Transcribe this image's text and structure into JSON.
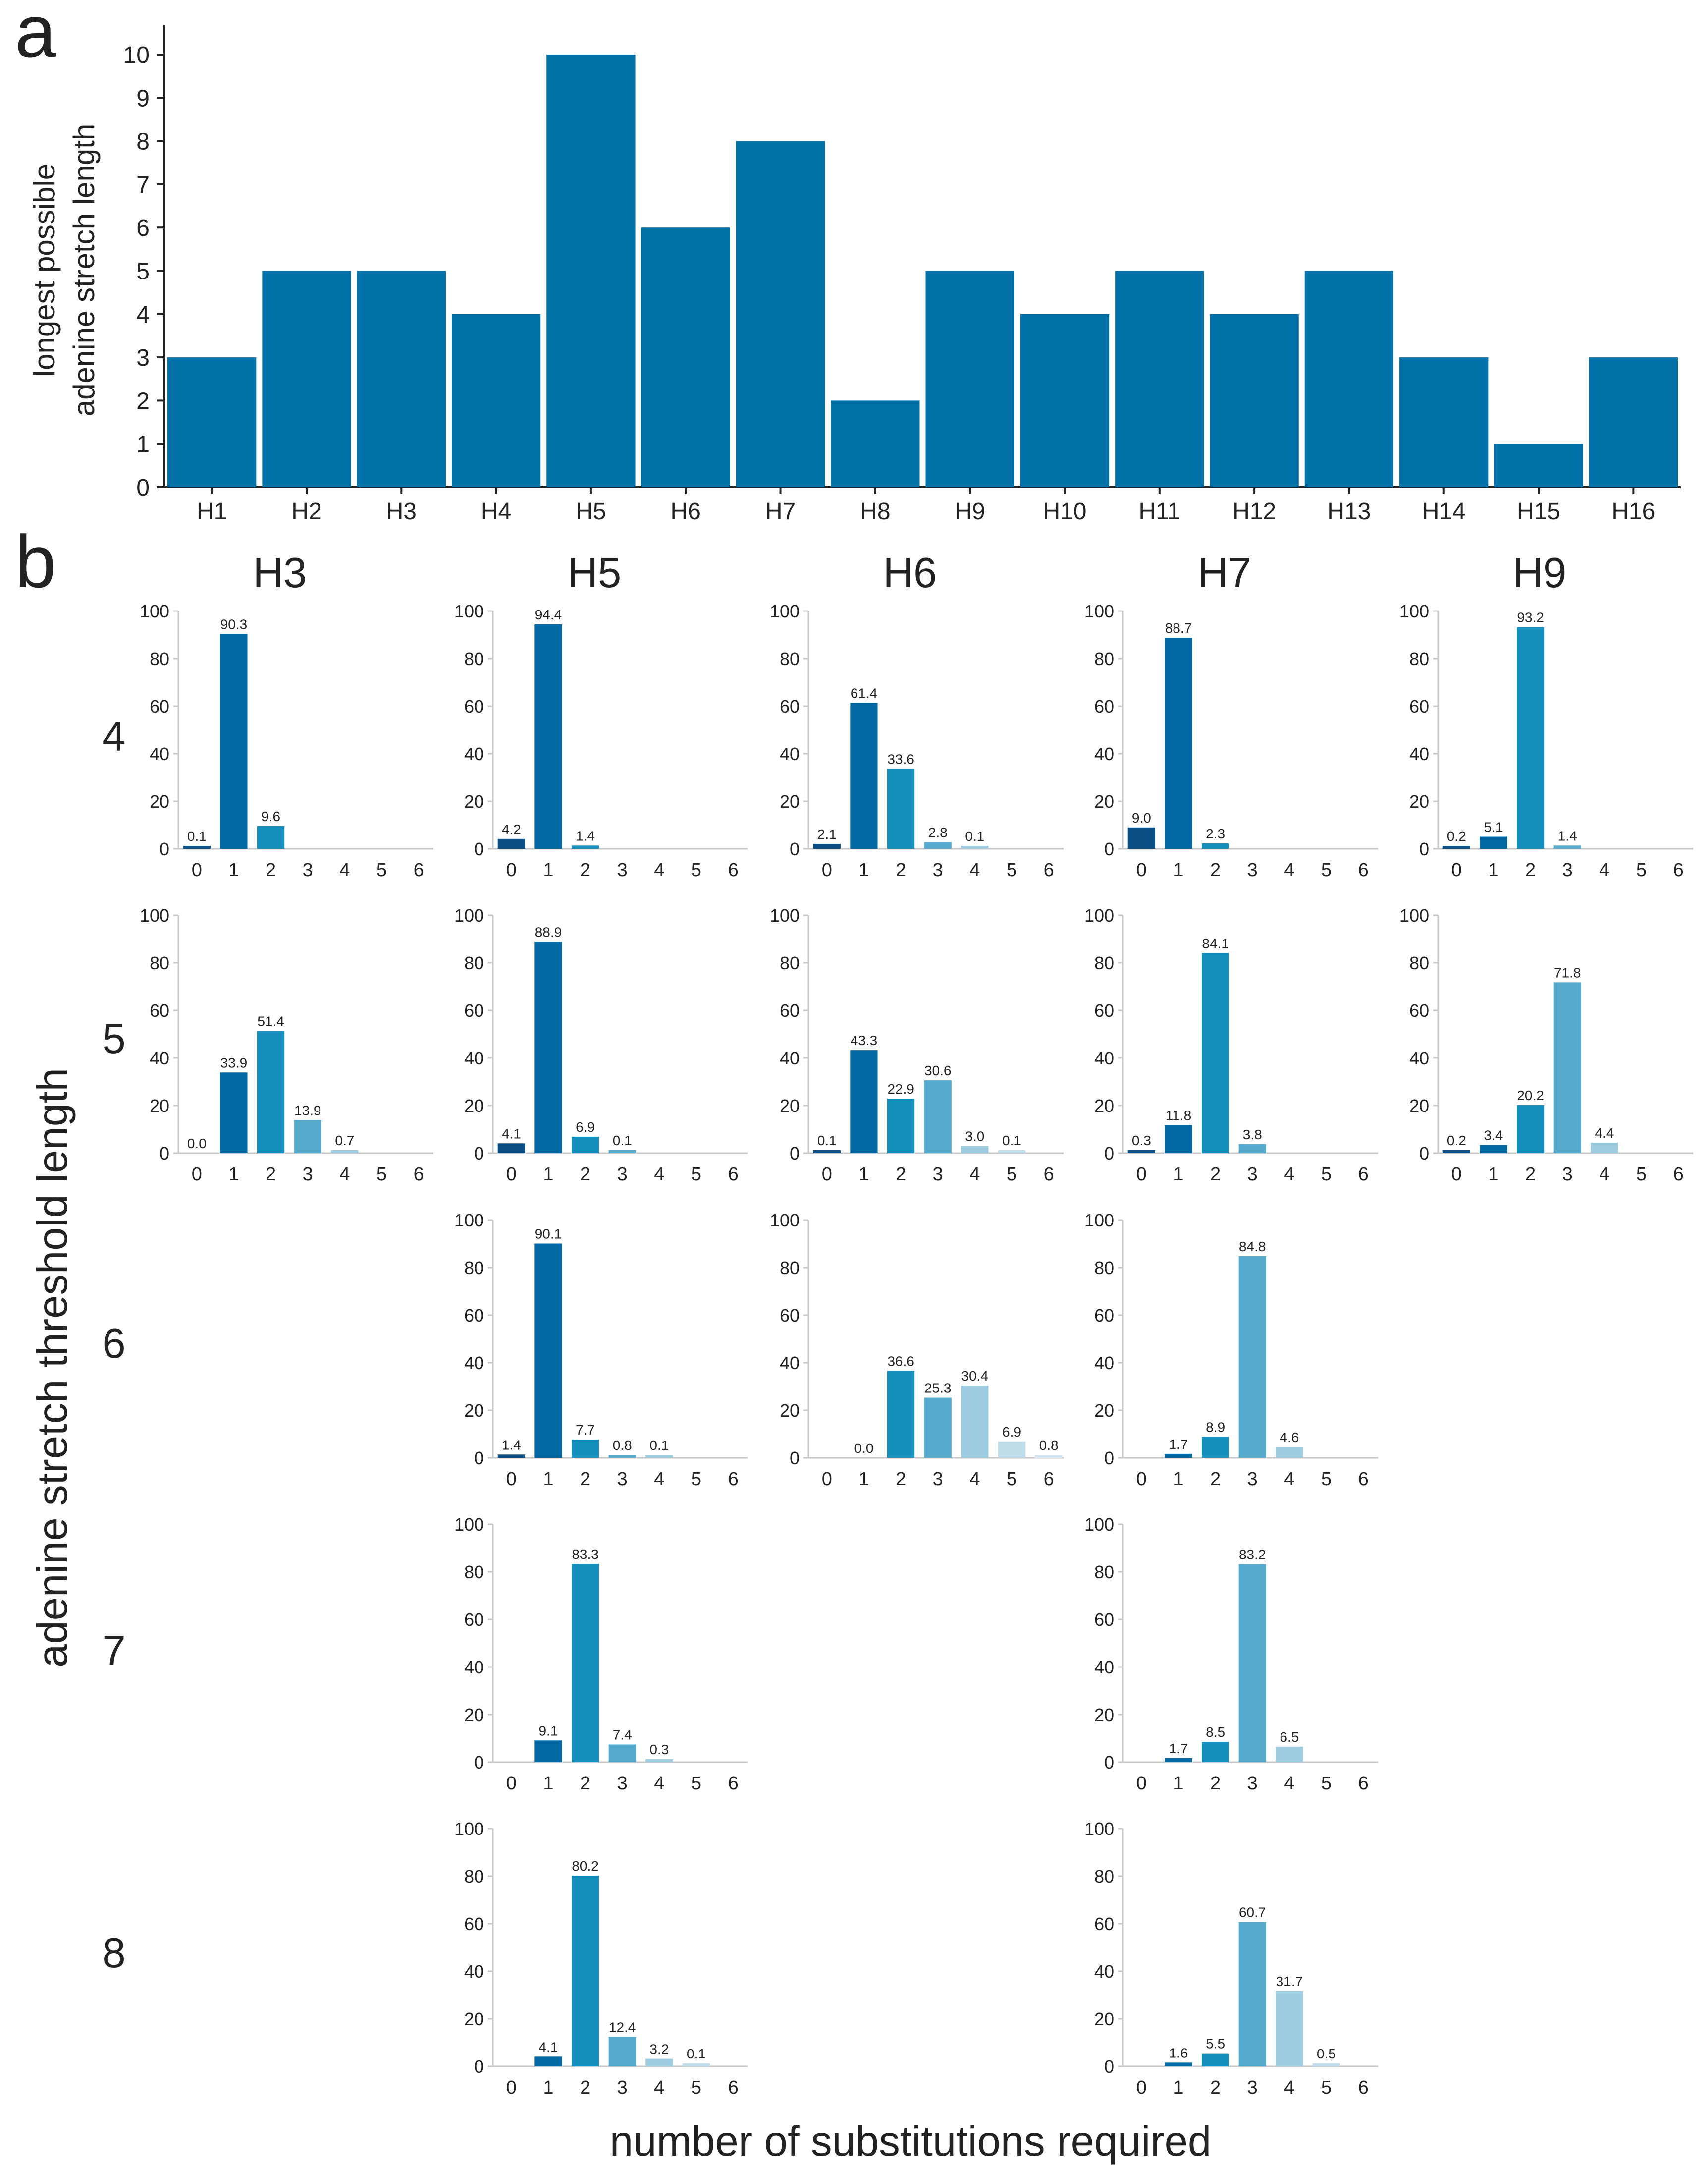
{
  "panel_labels": {
    "a": "a",
    "b": "b"
  },
  "colors": {
    "bar_main": "#0170a7",
    "axis": "#222222",
    "sub_axis": "#c8c8c8",
    "shades": [
      "#0a4f86",
      "#0269a4",
      "#178fbd",
      "#56abcc",
      "#9dcbe0",
      "#bfdcea",
      "#d7e9f2"
    ]
  },
  "chart_data": [
    {
      "type": "bar",
      "id": "panel-a",
      "title": "",
      "xlabel": "",
      "ylabel": [
        "longest possible",
        "adenine stretch length"
      ],
      "categories": [
        "H1",
        "H2",
        "H3",
        "H4",
        "H5",
        "H6",
        "H7",
        "H8",
        "H9",
        "H10",
        "H11",
        "H12",
        "H13",
        "H14",
        "H15",
        "H16"
      ],
      "values": [
        3,
        5,
        5,
        4,
        10,
        6,
        8,
        2,
        5,
        4,
        5,
        4,
        5,
        3,
        1,
        3
      ],
      "ylim": [
        0,
        10
      ],
      "yticks": [
        "0",
        "1",
        "2",
        "3",
        "4",
        "5",
        "6",
        "7",
        "8",
        "9",
        "10"
      ],
      "grid": false
    },
    {
      "type": "bar",
      "id": "panel-b",
      "xlabel": "number of substitutions required",
      "ylabel": "adenine stretch threshold length",
      "ylim": [
        0,
        100
      ],
      "yticks": [
        "0",
        "20",
        "40",
        "60",
        "80",
        "100"
      ],
      "x_categories": [
        "0",
        "1",
        "2",
        "3",
        "4",
        "5",
        "6"
      ],
      "columns": [
        "H3",
        "H5",
        "H6",
        "H7",
        "H9"
      ],
      "rows": [
        "4",
        "5",
        "6",
        "7",
        "8"
      ],
      "subplots": [
        {
          "col": 0,
          "row": 0,
          "values": [
            0.1,
            90.3,
            9.6,
            null,
            null,
            null,
            null
          ],
          "labels": [
            "0.1",
            "90.3",
            "9.6",
            "",
            "",
            "",
            ""
          ]
        },
        {
          "col": 1,
          "row": 0,
          "values": [
            4.2,
            94.4,
            1.4,
            null,
            null,
            null,
            null
          ],
          "labels": [
            "4.2",
            "94.4",
            "1.4",
            "",
            "",
            "",
            ""
          ]
        },
        {
          "col": 2,
          "row": 0,
          "values": [
            2.1,
            61.4,
            33.6,
            2.8,
            0.1,
            null,
            null
          ],
          "labels": [
            "2.1",
            "61.4",
            "33.6",
            "2.8",
            "0.1",
            "",
            ""
          ]
        },
        {
          "col": 3,
          "row": 0,
          "values": [
            9.0,
            88.7,
            2.3,
            null,
            null,
            null,
            null
          ],
          "labels": [
            "9.0",
            "88.7",
            "2.3",
            "",
            "",
            "",
            ""
          ]
        },
        {
          "col": 4,
          "row": 0,
          "values": [
            0.2,
            5.1,
            93.2,
            1.4,
            null,
            null,
            null
          ],
          "labels": [
            "0.2",
            "5.1",
            "93.2",
            "1.4",
            "",
            "",
            ""
          ]
        },
        {
          "col": 0,
          "row": 1,
          "values": [
            0.0,
            33.9,
            51.4,
            13.9,
            0.7,
            null,
            null
          ],
          "labels": [
            "0.0",
            "33.9",
            "51.4",
            "13.9",
            "0.7",
            "",
            ""
          ]
        },
        {
          "col": 1,
          "row": 1,
          "values": [
            4.1,
            88.9,
            6.9,
            0.1,
            null,
            null,
            null
          ],
          "labels": [
            "4.1",
            "88.9",
            "6.9",
            "0.1",
            "",
            "",
            ""
          ]
        },
        {
          "col": 2,
          "row": 1,
          "values": [
            0.1,
            43.3,
            22.9,
            30.6,
            3.0,
            0.1,
            null
          ],
          "labels": [
            "0.1",
            "43.3",
            "22.9",
            "30.6",
            "3.0",
            "0.1",
            ""
          ]
        },
        {
          "col": 3,
          "row": 1,
          "values": [
            0.3,
            11.8,
            84.1,
            3.8,
            null,
            null,
            null
          ],
          "labels": [
            "0.3",
            "11.8",
            "84.1",
            "3.8",
            "",
            "",
            ""
          ]
        },
        {
          "col": 4,
          "row": 1,
          "values": [
            0.2,
            3.4,
            20.2,
            71.8,
            4.4,
            null,
            null
          ],
          "labels": [
            "0.2",
            "3.4",
            "20.2",
            "71.8",
            "4.4",
            "",
            ""
          ]
        },
        {
          "col": 1,
          "row": 2,
          "values": [
            1.4,
            90.1,
            7.7,
            0.8,
            0.1,
            null,
            null
          ],
          "labels": [
            "1.4",
            "90.1",
            "7.7",
            "0.8",
            "0.1",
            "",
            ""
          ]
        },
        {
          "col": 2,
          "row": 2,
          "values": [
            null,
            0.0,
            36.6,
            25.3,
            30.4,
            6.9,
            0.8
          ],
          "labels": [
            "",
            "0.0",
            "36.6",
            "25.3",
            "30.4",
            "6.9",
            "0.8"
          ]
        },
        {
          "col": 3,
          "row": 2,
          "values": [
            null,
            1.7,
            8.9,
            84.8,
            4.6,
            null,
            null
          ],
          "labels": [
            "",
            "1.7",
            "8.9",
            "84.8",
            "4.6",
            "",
            ""
          ]
        },
        {
          "col": 1,
          "row": 3,
          "values": [
            null,
            9.1,
            83.3,
            7.4,
            0.3,
            null,
            null
          ],
          "labels": [
            "",
            "9.1",
            "83.3",
            "7.4",
            "0.3",
            "",
            ""
          ]
        },
        {
          "col": 3,
          "row": 3,
          "values": [
            null,
            1.7,
            8.5,
            83.2,
            6.5,
            null,
            null
          ],
          "labels": [
            "",
            "1.7",
            "8.5",
            "83.2",
            "6.5",
            "",
            ""
          ]
        },
        {
          "col": 1,
          "row": 4,
          "values": [
            null,
            4.1,
            80.2,
            12.4,
            3.2,
            0.1,
            null
          ],
          "labels": [
            "",
            "4.1",
            "80.2",
            "12.4",
            "3.2",
            "0.1",
            ""
          ]
        },
        {
          "col": 3,
          "row": 4,
          "values": [
            null,
            1.6,
            5.5,
            60.7,
            31.7,
            0.5,
            null
          ],
          "labels": [
            "",
            "1.6",
            "5.5",
            "60.7",
            "31.7",
            "0.5",
            ""
          ]
        }
      ]
    }
  ]
}
